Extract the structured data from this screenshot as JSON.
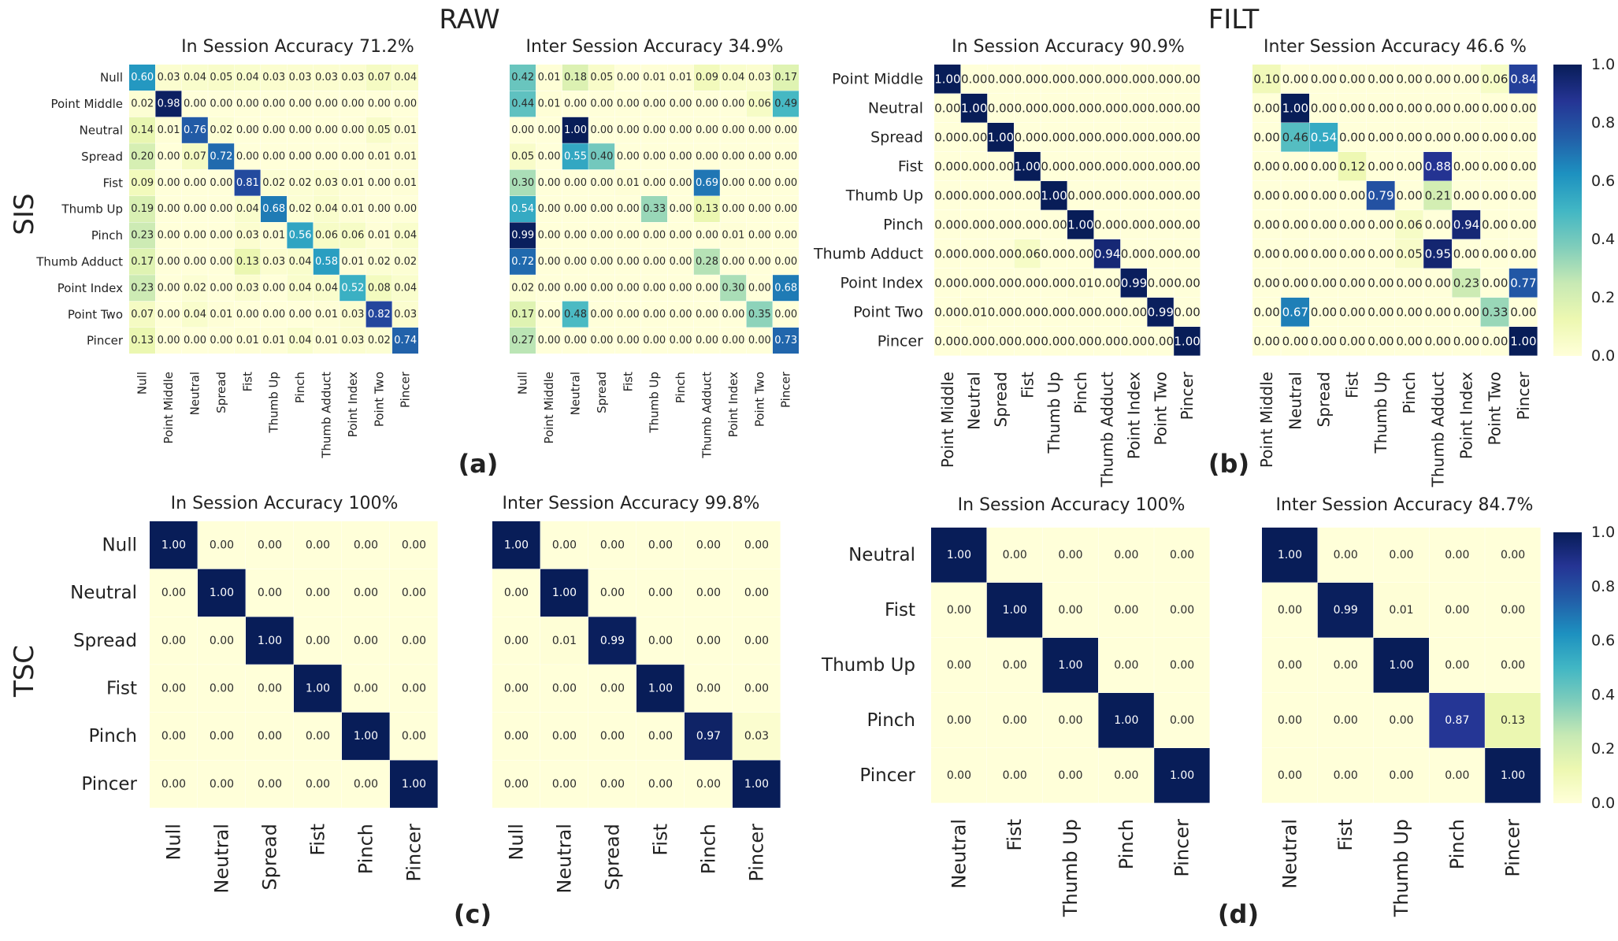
{
  "chart_data": {
    "type": "heatmap",
    "column_headers": {
      "raw": "RAW",
      "filt": "FILT"
    },
    "row_headers": {
      "sis": "SIS",
      "tsc": "TSC"
    },
    "colorbars": [
      {
        "id": "sis",
        "ticks": [
          "1.0",
          "0.8",
          "0.6",
          "0.4",
          "0.2",
          "0.0"
        ]
      },
      {
        "id": "tsc",
        "ticks": [
          "1.0",
          "0.8",
          "0.6",
          "0.4",
          "0.2",
          "0.0"
        ]
      }
    ],
    "panels": [
      {
        "label": "(a)"
      },
      {
        "label": "(b)"
      },
      {
        "label": "(c)"
      },
      {
        "label": "(d)"
      }
    ],
    "matrices": [
      {
        "id": "a-in",
        "panel": "(a)",
        "title": "In Session Accuracy 71.2%",
        "row_labels": [
          "Null",
          "Point Middle",
          "Neutral",
          "Spread",
          "Fist",
          "Thumb Up",
          "Pinch",
          "Thumb Adduct",
          "Point Index",
          "Point Two",
          "Pincer"
        ],
        "col_labels": [
          "Null",
          "Point Middle",
          "Neutral",
          "Spread",
          "Fist",
          "Thumb Up",
          "Pinch",
          "Thumb Adduct",
          "Point Index",
          "Point Two",
          "Pincer"
        ],
        "values": [
          [
            0.6,
            0.03,
            0.04,
            0.05,
            0.04,
            0.03,
            0.03,
            0.03,
            0.03,
            0.07,
            0.04
          ],
          [
            0.02,
            0.98,
            0.0,
            0.0,
            0.0,
            0.0,
            0.0,
            0.0,
            0.0,
            0.0,
            0.0
          ],
          [
            0.14,
            0.01,
            0.76,
            0.02,
            0.0,
            0.0,
            0.0,
            0.0,
            0.0,
            0.05,
            0.01
          ],
          [
            0.2,
            0.0,
            0.07,
            0.72,
            0.0,
            0.0,
            0.0,
            0.0,
            0.0,
            0.01,
            0.01
          ],
          [
            0.09,
            0.0,
            0.0,
            0.0,
            0.81,
            0.02,
            0.02,
            0.03,
            0.01,
            0.0,
            0.01
          ],
          [
            0.19,
            0.0,
            0.0,
            0.0,
            0.04,
            0.68,
            0.02,
            0.04,
            0.01,
            0.0,
            0.0
          ],
          [
            0.23,
            0.0,
            0.0,
            0.0,
            0.03,
            0.01,
            0.56,
            0.06,
            0.06,
            0.01,
            0.04
          ],
          [
            0.17,
            0.0,
            0.0,
            0.0,
            0.13,
            0.03,
            0.04,
            0.58,
            0.01,
            0.02,
            0.02
          ],
          [
            0.23,
            0.0,
            0.02,
            0.0,
            0.03,
            0.0,
            0.04,
            0.04,
            0.52,
            0.08,
            0.04
          ],
          [
            0.07,
            0.0,
            0.04,
            0.01,
            0.0,
            0.0,
            0.0,
            0.01,
            0.03,
            0.82,
            0.03
          ],
          [
            0.13,
            0.0,
            0.0,
            0.0,
            0.01,
            0.01,
            0.04,
            0.01,
            0.03,
            0.02,
            0.74
          ]
        ]
      },
      {
        "id": "a-inter",
        "panel": "(a)",
        "title": "Inter Session Accuracy 34.9%",
        "row_labels": [],
        "col_labels": [
          "Null",
          "Point Middle",
          "Neutral",
          "Spread",
          "Fist",
          "Thumb Up",
          "Pinch",
          "Thumb Adduct",
          "Point Index",
          "Point Two",
          "Pincer"
        ],
        "values": [
          [
            0.42,
            0.01,
            0.18,
            0.05,
            0.0,
            0.01,
            0.01,
            0.09,
            0.04,
            0.03,
            0.17
          ],
          [
            0.44,
            0.01,
            0.0,
            0.0,
            0.0,
            0.0,
            0.0,
            0.0,
            0.0,
            0.06,
            0.49
          ],
          [
            0.0,
            0.0,
            1.0,
            0.0,
            0.0,
            0.0,
            0.0,
            0.0,
            0.0,
            0.0,
            0.0
          ],
          [
            0.05,
            0.0,
            0.55,
            0.4,
            0.0,
            0.0,
            0.0,
            0.0,
            0.0,
            0.0,
            0.0
          ],
          [
            0.3,
            0.0,
            0.0,
            0.0,
            0.01,
            0.0,
            0.0,
            0.69,
            0.0,
            0.0,
            0.0
          ],
          [
            0.54,
            0.0,
            0.0,
            0.0,
            0.0,
            0.33,
            0.0,
            0.13,
            0.0,
            0.0,
            0.0
          ],
          [
            0.99,
            0.0,
            0.0,
            0.0,
            0.0,
            0.0,
            0.0,
            0.0,
            0.01,
            0.0,
            0.0
          ],
          [
            0.72,
            0.0,
            0.0,
            0.0,
            0.0,
            0.0,
            0.0,
            0.28,
            0.0,
            0.0,
            0.0
          ],
          [
            0.02,
            0.0,
            0.0,
            0.0,
            0.0,
            0.0,
            0.0,
            0.0,
            0.3,
            0.0,
            0.68
          ],
          [
            0.17,
            0.0,
            0.48,
            0.0,
            0.0,
            0.0,
            0.0,
            0.0,
            0.0,
            0.35,
            0.0
          ],
          [
            0.27,
            0.0,
            0.0,
            0.0,
            0.0,
            0.0,
            0.0,
            0.0,
            0.0,
            0.0,
            0.73
          ]
        ]
      },
      {
        "id": "b-in",
        "panel": "(b)",
        "title": "In Session Accuracy 90.9%",
        "row_labels": [
          "Point Middle",
          "Neutral",
          "Spread",
          "Fist",
          "Thumb Up",
          "Pinch",
          "Thumb Adduct",
          "Point Index",
          "Point Two",
          "Pincer"
        ],
        "col_labels": [
          "Point Middle",
          "Neutral",
          "Spread",
          "Fist",
          "Thumb Up",
          "Pinch",
          "Thumb Adduct",
          "Point Index",
          "Point Two",
          "Pincer"
        ],
        "values": [
          [
            1.0,
            0.0,
            0.0,
            0.0,
            0.0,
            0.0,
            0.0,
            0.0,
            0.0,
            0.0
          ],
          [
            0.0,
            1.0,
            0.0,
            0.0,
            0.0,
            0.0,
            0.0,
            0.0,
            0.0,
            0.0
          ],
          [
            0.0,
            0.0,
            1.0,
            0.0,
            0.0,
            0.0,
            0.0,
            0.0,
            0.0,
            0.0
          ],
          [
            0.0,
            0.0,
            0.0,
            1.0,
            0.0,
            0.0,
            0.0,
            0.0,
            0.0,
            0.0
          ],
          [
            0.0,
            0.0,
            0.0,
            0.0,
            1.0,
            0.0,
            0.0,
            0.0,
            0.0,
            0.0
          ],
          [
            0.0,
            0.0,
            0.0,
            0.0,
            0.0,
            1.0,
            0.0,
            0.0,
            0.0,
            0.0
          ],
          [
            0.0,
            0.0,
            0.0,
            0.06,
            0.0,
            0.0,
            0.94,
            0.0,
            0.0,
            0.0
          ],
          [
            0.0,
            0.0,
            0.0,
            0.0,
            0.0,
            0.01,
            0.0,
            0.99,
            0.0,
            0.0
          ],
          [
            0.0,
            0.01,
            0.0,
            0.0,
            0.0,
            0.0,
            0.0,
            0.0,
            0.99,
            0.0
          ],
          [
            0.0,
            0.0,
            0.0,
            0.0,
            0.0,
            0.0,
            0.0,
            0.0,
            0.0,
            1.0
          ]
        ]
      },
      {
        "id": "b-inter",
        "panel": "(b)",
        "title": "Inter Session Accuracy 46.6 %",
        "row_labels": [],
        "col_labels": [
          "Point Middle",
          "Neutral",
          "Spread",
          "Fist",
          "Thumb Up",
          "Pinch",
          "Thumb Adduct",
          "Point Index",
          "Point Two",
          "Pincer"
        ],
        "values": [
          [
            0.1,
            0.0,
            0.0,
            0.0,
            0.0,
            0.0,
            0.0,
            0.0,
            0.06,
            0.84
          ],
          [
            0.0,
            1.0,
            0.0,
            0.0,
            0.0,
            0.0,
            0.0,
            0.0,
            0.0,
            0.0
          ],
          [
            0.0,
            0.46,
            0.54,
            0.0,
            0.0,
            0.0,
            0.0,
            0.0,
            0.0,
            0.0
          ],
          [
            0.0,
            0.0,
            0.0,
            0.12,
            0.0,
            0.0,
            0.88,
            0.0,
            0.0,
            0.0
          ],
          [
            0.0,
            0.0,
            0.0,
            0.0,
            0.79,
            0.0,
            0.21,
            0.0,
            0.0,
            0.0
          ],
          [
            0.0,
            0.0,
            0.0,
            0.0,
            0.0,
            0.06,
            0.0,
            0.94,
            0.0,
            0.0
          ],
          [
            0.0,
            0.0,
            0.0,
            0.0,
            0.0,
            0.05,
            0.95,
            0.0,
            0.0,
            0.0
          ],
          [
            0.0,
            0.0,
            0.0,
            0.0,
            0.0,
            0.0,
            0.0,
            0.23,
            0.0,
            0.77
          ],
          [
            0.0,
            0.67,
            0.0,
            0.0,
            0.0,
            0.0,
            0.0,
            0.0,
            0.33,
            0.0
          ],
          [
            0.0,
            0.0,
            0.0,
            0.0,
            0.0,
            0.0,
            0.0,
            0.0,
            0.0,
            1.0
          ]
        ]
      },
      {
        "id": "c-in",
        "panel": "(c)",
        "title": "In Session Accuracy 100%",
        "row_labels": [
          "Null",
          "Neutral",
          "Spread",
          "Fist",
          "Pinch",
          "Pincer"
        ],
        "col_labels": [
          "Null",
          "Neutral",
          "Spread",
          "Fist",
          "Pinch",
          "Pincer"
        ],
        "values": [
          [
            1.0,
            0.0,
            0.0,
            0.0,
            0.0,
            0.0
          ],
          [
            0.0,
            1.0,
            0.0,
            0.0,
            0.0,
            0.0
          ],
          [
            0.0,
            0.0,
            1.0,
            0.0,
            0.0,
            0.0
          ],
          [
            0.0,
            0.0,
            0.0,
            1.0,
            0.0,
            0.0
          ],
          [
            0.0,
            0.0,
            0.0,
            0.0,
            1.0,
            0.0
          ],
          [
            0.0,
            0.0,
            0.0,
            0.0,
            0.0,
            1.0
          ]
        ]
      },
      {
        "id": "c-inter",
        "panel": "(c)",
        "title": "Inter Session Accuracy 99.8%",
        "row_labels": [],
        "col_labels": [
          "Null",
          "Neutral",
          "Spread",
          "Fist",
          "Pinch",
          "Pincer"
        ],
        "values": [
          [
            1.0,
            0.0,
            0.0,
            0.0,
            0.0,
            0.0
          ],
          [
            0.0,
            1.0,
            0.0,
            0.0,
            0.0,
            0.0
          ],
          [
            0.0,
            0.01,
            0.99,
            0.0,
            0.0,
            0.0
          ],
          [
            0.0,
            0.0,
            0.0,
            1.0,
            0.0,
            0.0
          ],
          [
            0.0,
            0.0,
            0.0,
            0.0,
            0.97,
            0.03
          ],
          [
            0.0,
            0.0,
            0.0,
            0.0,
            0.0,
            1.0
          ]
        ]
      },
      {
        "id": "d-in",
        "panel": "(d)",
        "title": "In Session Accuracy 100%",
        "row_labels": [
          "Neutral",
          "Fist",
          "Thumb Up",
          "Pinch",
          "Pincer"
        ],
        "col_labels": [
          "Neutral",
          "Fist",
          "Thumb Up",
          "Pinch",
          "Pincer"
        ],
        "values": [
          [
            1.0,
            0.0,
            0.0,
            0.0,
            0.0
          ],
          [
            0.0,
            1.0,
            0.0,
            0.0,
            0.0
          ],
          [
            0.0,
            0.0,
            1.0,
            0.0,
            0.0
          ],
          [
            0.0,
            0.0,
            0.0,
            1.0,
            0.0
          ],
          [
            0.0,
            0.0,
            0.0,
            0.0,
            1.0
          ]
        ]
      },
      {
        "id": "d-inter",
        "panel": "(d)",
        "title": "Inter Session Accuracy 84.7%",
        "row_labels": [],
        "col_labels": [
          "Neutral",
          "Fist",
          "Thumb Up",
          "Pinch",
          "Pincer"
        ],
        "values": [
          [
            1.0,
            0.0,
            0.0,
            0.0,
            0.0
          ],
          [
            0.0,
            0.99,
            0.01,
            0.0,
            0.0
          ],
          [
            0.0,
            0.0,
            1.0,
            0.0,
            0.0
          ],
          [
            0.0,
            0.0,
            0.0,
            0.87,
            0.13
          ],
          [
            0.0,
            0.0,
            0.0,
            0.0,
            1.0
          ]
        ]
      }
    ]
  }
}
